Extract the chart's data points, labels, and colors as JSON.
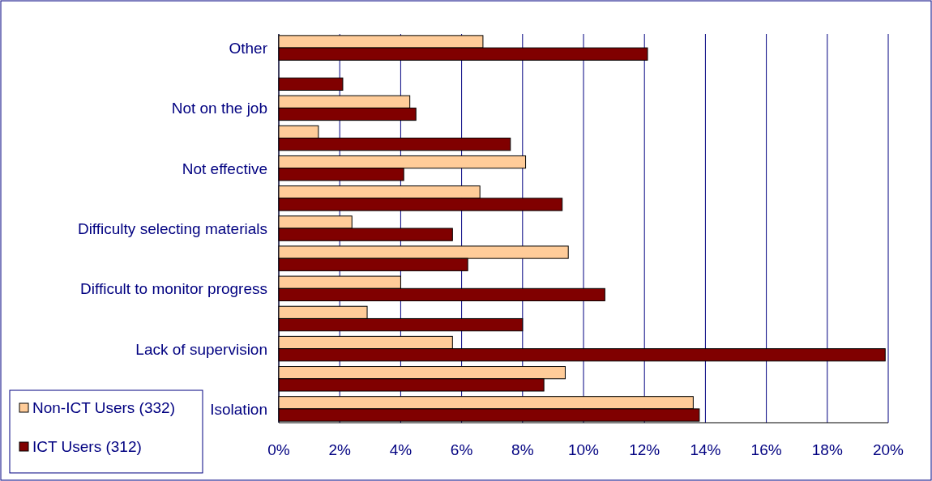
{
  "chart_data": {
    "type": "bar",
    "orientation": "horizontal",
    "categories": [
      "Other",
      null,
      "Not on the job",
      null,
      "Not effective",
      null,
      "Difficulty selecting materials",
      null,
      "Difficult to monitor progress",
      null,
      "Lack of supervision",
      null,
      "Isolation"
    ],
    "series": [
      {
        "name": "Non-ICT Users (332)",
        "color": "#ffcc99",
        "values": [
          6.7,
          null,
          4.3,
          1.3,
          8.1,
          6.6,
          2.4,
          9.5,
          4.0,
          2.9,
          5.7,
          9.4,
          13.6
        ]
      },
      {
        "name": "ICT Users (312)",
        "color": "#800000",
        "values": [
          12.1,
          2.1,
          4.5,
          7.6,
          4.1,
          9.3,
          5.7,
          6.2,
          10.7,
          8.0,
          19.9,
          8.7,
          13.8
        ]
      }
    ],
    "xlim": [
      0,
      20
    ],
    "xticks": [
      {
        "value": 0,
        "label": "0%"
      },
      {
        "value": 2,
        "label": "2%"
      },
      {
        "value": 4,
        "label": "4%"
      },
      {
        "value": 6,
        "label": "6%"
      },
      {
        "value": 8,
        "label": "8%"
      },
      {
        "value": 10,
        "label": "10%"
      },
      {
        "value": 12,
        "label": "12%"
      },
      {
        "value": 14,
        "label": "14%"
      },
      {
        "value": 16,
        "label": "16%"
      },
      {
        "value": 18,
        "label": "18%"
      },
      {
        "value": 20,
        "label": "20%"
      }
    ],
    "grid": "x",
    "legend": "bottom left"
  }
}
